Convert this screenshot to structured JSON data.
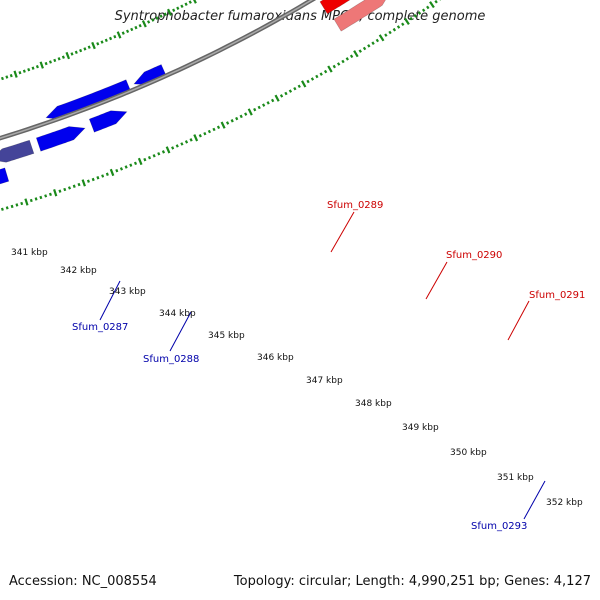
{
  "title": "Syntrophobacter fumaroxidans MPOB, complete genome",
  "footer": {
    "accession": "Accession: NC_008554",
    "stats": "Topology: circular; Length: 4,990,251 bp; Genes: 4,127"
  },
  "colors": {
    "backbone": "#888888",
    "tick": "#1a8a1a",
    "forward_label": "#cc0000",
    "reverse_label": "#0000aa",
    "blue": "#0000ee",
    "dark_blue": "#444499",
    "red": "#ee0000",
    "pink": "#ee7777",
    "olive": "#6b8e23",
    "grey": "#c8c8c8"
  },
  "scale_labels": [
    "341 kbp",
    "342 kbp",
    "343 kbp",
    "344 kbp",
    "345 kbp",
    "346 kbp",
    "347 kbp",
    "348 kbp",
    "349 kbp",
    "350 kbp",
    "351 kbp",
    "352 kbp"
  ],
  "gene_labels": [
    "Sfum_0289",
    "Sfum_0290",
    "Sfum_0291",
    "Sfum_0287",
    "Sfum_0288",
    "Sfum_0293"
  ]
}
